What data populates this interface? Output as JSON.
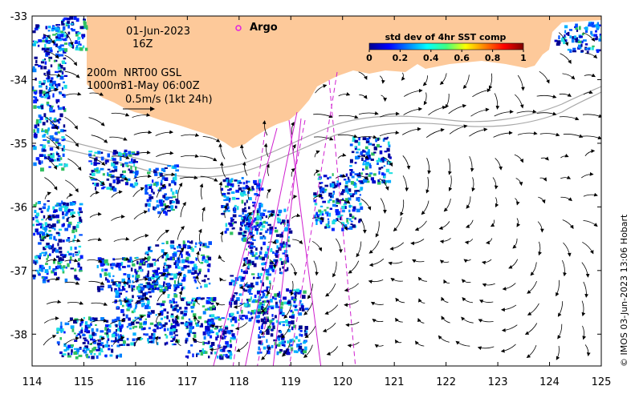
{
  "map": {
    "date": "01-Jun-2023",
    "time": "16Z",
    "legend_200m": "200m",
    "legend_1000m": "1000m",
    "altimetry_source": "NRT00 GSL",
    "altimetry_time": "31-May 06:00Z",
    "scale_label": "0.5m/s (1kt 24h)",
    "argo_label": "Argo",
    "credit": "© IMOS 03-Jun-2023 13:06 Hobart",
    "colors": {
      "land": "#fdc99a",
      "argo": "#e020e0",
      "track": "#d020d0",
      "contour": "#a8a8a8"
    }
  },
  "colorbar": {
    "title": "std dev of 4hr SST comp",
    "ticks": [
      "0",
      "0.2",
      "0.4",
      "0.6",
      "0.8",
      "1"
    ],
    "range": [
      0,
      1
    ],
    "colormap": "jet"
  },
  "axes": {
    "x_ticks": [
      "114",
      "115",
      "116",
      "117",
      "118",
      "119",
      "120",
      "121",
      "122",
      "123",
      "124",
      "125"
    ],
    "y_ticks": [
      "-33",
      "-34",
      "-35",
      "-36",
      "-37",
      "-38"
    ],
    "lon_range": [
      114,
      125
    ],
    "lat_range": [
      -38.5,
      -33
    ]
  }
}
